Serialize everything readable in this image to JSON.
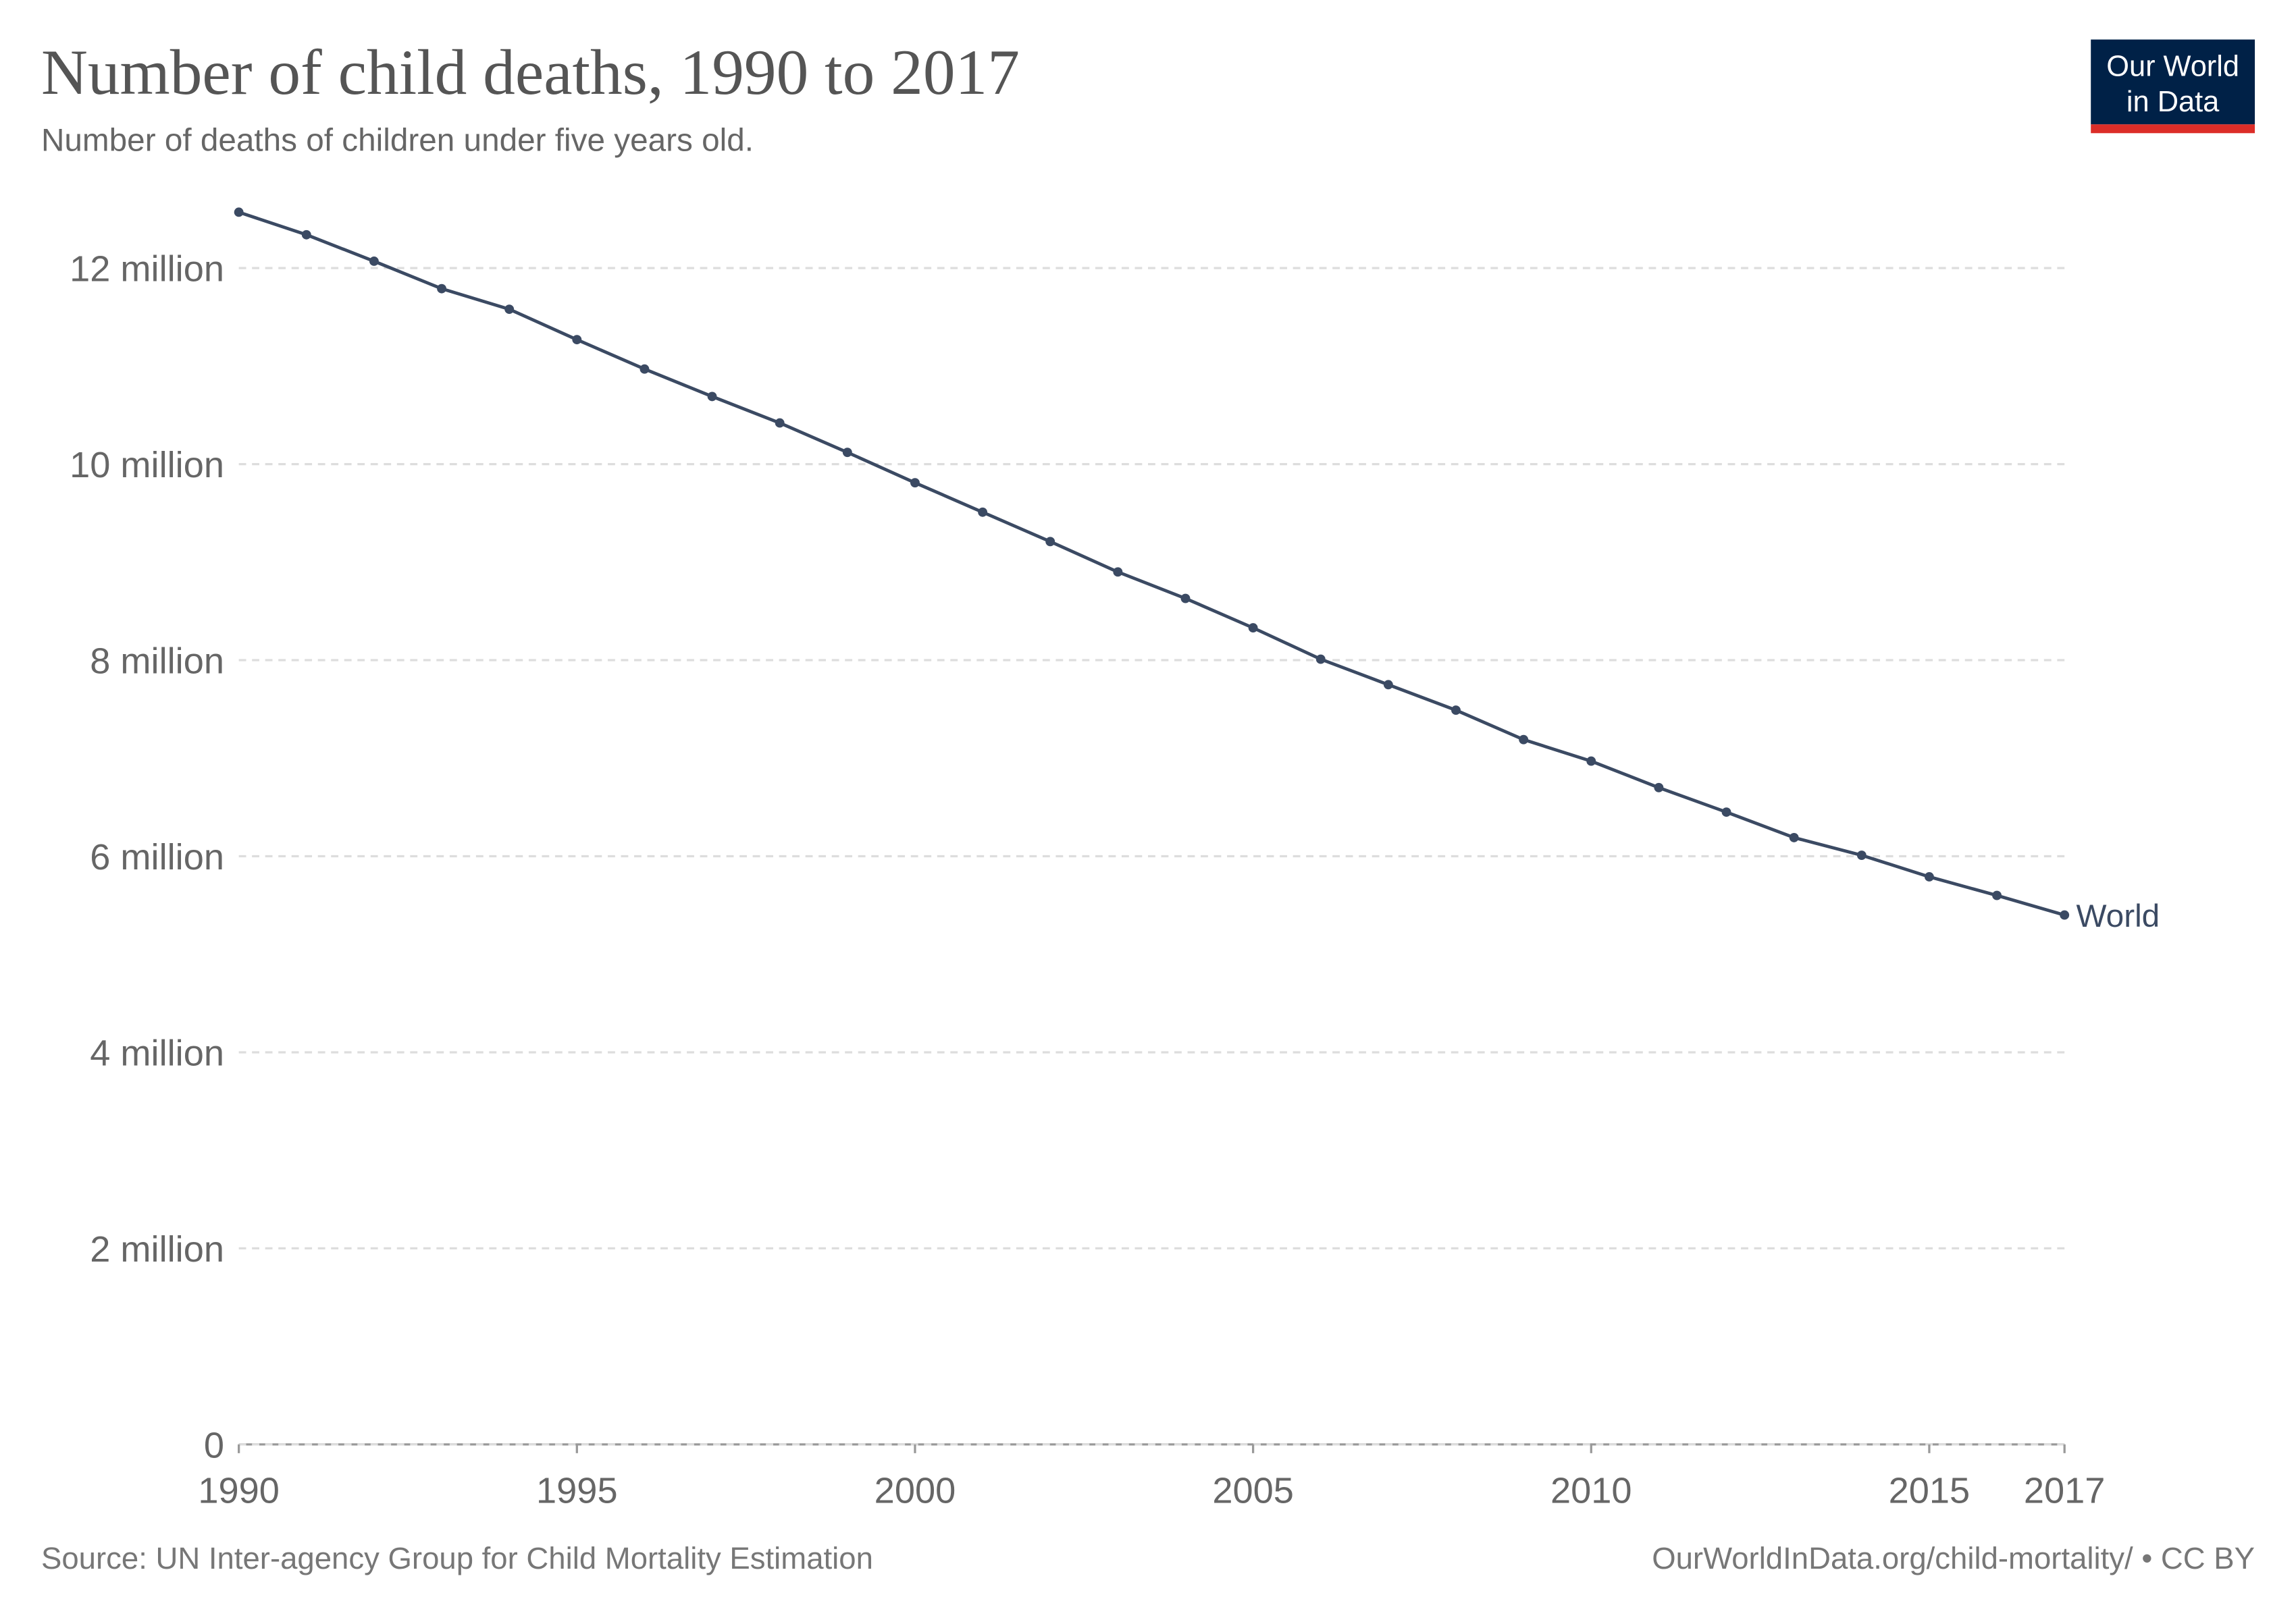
{
  "chart_data": {
    "type": "line",
    "title": "Number of child deaths, 1990 to 2017",
    "subtitle": "Number of deaths of children under five years old.",
    "logo": [
      "Our World",
      "in Data"
    ],
    "source": "Source: UN Inter-agency Group for Child Mortality Estimation",
    "url": "OurWorldInData.org/child-mortality/ • CC BY",
    "x": [
      1990,
      1991,
      1992,
      1993,
      1994,
      1995,
      1996,
      1997,
      1998,
      1999,
      2000,
      2001,
      2002,
      2003,
      2004,
      2005,
      2006,
      2007,
      2008,
      2009,
      2010,
      2011,
      2012,
      2013,
      2014,
      2015,
      2016,
      2017
    ],
    "series": [
      {
        "name": "World",
        "color": "#3b4a63",
        "values": [
          12570000,
          12340000,
          12070000,
          11790000,
          11580000,
          11270000,
          10970000,
          10690000,
          10420000,
          10120000,
          9810000,
          9510000,
          9210000,
          8900000,
          8630000,
          8330000,
          8010000,
          7750000,
          7490000,
          7190000,
          6970000,
          6700000,
          6450000,
          6190000,
          6010000,
          5790000,
          5600000,
          5400000
        ]
      }
    ],
    "xlim": [
      1990,
      2017
    ],
    "xticks": [
      1990,
      1995,
      2000,
      2005,
      2010,
      2015,
      2017
    ],
    "ylim": [
      0,
      12570000
    ],
    "yticks": [
      0,
      {
        "value": 2000000,
        "label": "2 million"
      },
      {
        "value": 4000000,
        "label": "4 million"
      },
      {
        "value": 6000000,
        "label": "6 million"
      },
      {
        "value": 8000000,
        "label": "8 million"
      },
      {
        "value": 10000000,
        "label": "10 million"
      },
      {
        "value": 12000000,
        "label": "12 million"
      }
    ],
    "grid": true
  }
}
